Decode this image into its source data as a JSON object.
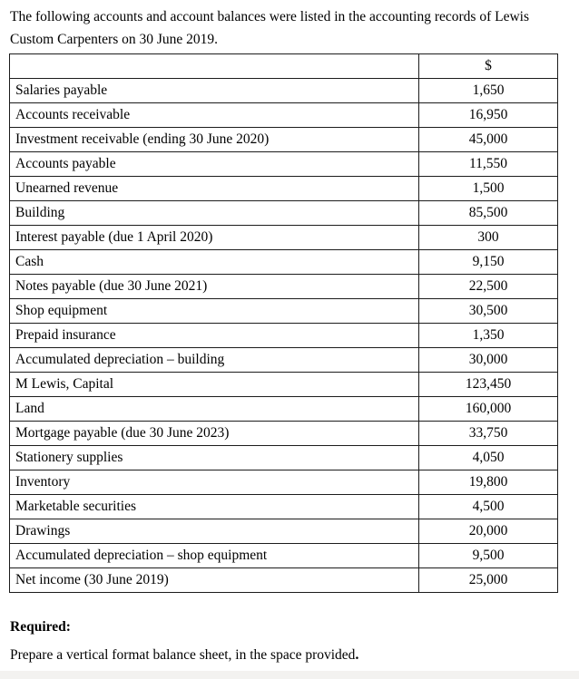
{
  "intro": {
    "text": "The following accounts and account balances were listed in the accounting records of Lewis Custom Carpenters on 30 June 2019."
  },
  "table": {
    "account_header": "",
    "value_header": "$",
    "rows": [
      {
        "account": "Salaries payable",
        "amount": "1,650"
      },
      {
        "account": "Accounts receivable",
        "amount": "16,950"
      },
      {
        "account": "Investment receivable (ending 30 June 2020)",
        "amount": "45,000"
      },
      {
        "account": "Accounts payable",
        "amount": "11,550"
      },
      {
        "account": "Unearned revenue",
        "amount": "1,500"
      },
      {
        "account": "Building",
        "amount": "85,500"
      },
      {
        "account": "Interest payable (due 1 April 2020)",
        "amount": "300"
      },
      {
        "account": "Cash",
        "amount": "9,150"
      },
      {
        "account": "Notes payable (due 30 June 2021)",
        "amount": "22,500"
      },
      {
        "account": "Shop equipment",
        "amount": "30,500"
      },
      {
        "account": "Prepaid insurance",
        "amount": "1,350"
      },
      {
        "account": "Accumulated depreciation – building",
        "amount": "30,000"
      },
      {
        "account": "M Lewis, Capital",
        "amount": "123,450"
      },
      {
        "account": "Land",
        "amount": "160,000"
      },
      {
        "account": "Mortgage payable (due 30 June 2023)",
        "amount": "33,750"
      },
      {
        "account": "Stationery supplies",
        "amount": "4,050"
      },
      {
        "account": "Inventory",
        "amount": "19,800"
      },
      {
        "account": "Marketable securities",
        "amount": "4,500"
      },
      {
        "account": "Drawings",
        "amount": "20,000"
      },
      {
        "account": "Accumulated depreciation – shop equipment",
        "amount": "9,500"
      },
      {
        "account": "Net income (30 June 2019)",
        "amount": "25,000"
      }
    ]
  },
  "required": {
    "label": "Required:",
    "instruction": "Prepare a vertical format balance sheet, in the space provided",
    "instruction_period": "."
  }
}
